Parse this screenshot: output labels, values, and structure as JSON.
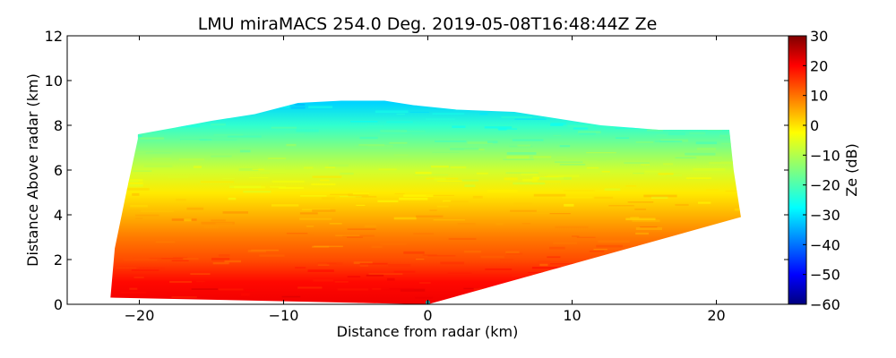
{
  "chart_data": {
    "type": "heatmap",
    "title": "LMU miraMACS 254.0 Deg. 2019-05-08T16:48:44Z  Ze",
    "xlabel": "Distance from radar (km)",
    "ylabel": "Distance Above radar  (km)",
    "xlim": [
      -25,
      25
    ],
    "ylim": [
      0,
      12
    ],
    "xticks": [
      -20,
      -10,
      0,
      10,
      20
    ],
    "xtick_labels": [
      "−20",
      "−10",
      "0",
      "10",
      "20"
    ],
    "yticks": [
      0,
      2,
      4,
      6,
      8,
      10,
      12
    ],
    "ytick_labels": [
      "0",
      "2",
      "4",
      "6",
      "8",
      "10",
      "12"
    ],
    "colorbar": {
      "label": "Ze (dB)",
      "range": [
        -60,
        30
      ],
      "ticks": [
        -60,
        -50,
        -40,
        -30,
        -20,
        -10,
        0,
        10,
        20,
        30
      ],
      "tick_labels": [
        "−60",
        "−50",
        "−40",
        "−30",
        "−20",
        "−10",
        "0",
        "10",
        "20",
        "30"
      ],
      "colormap": "jet"
    },
    "echo_region": {
      "left_edge_km": [
        [
          -22,
          0.3
        ],
        [
          -21.7,
          2.5
        ],
        [
          -20.9,
          5.0
        ],
        [
          -20.1,
          7.4
        ]
      ],
      "right_edge_km": [
        [
          0,
          0
        ],
        [
          21.7,
          3.9
        ],
        [
          21.2,
          6.0
        ],
        [
          20.9,
          7.8
        ]
      ],
      "top_profile_km": [
        [
          -20.1,
          7.6
        ],
        [
          -17.5,
          7.9
        ],
        [
          -15,
          8.2
        ],
        [
          -12,
          8.5
        ],
        [
          -9,
          9.0
        ],
        [
          -6,
          9.1
        ],
        [
          -3,
          9.1
        ],
        [
          -1,
          8.9
        ],
        [
          2,
          8.7
        ],
        [
          6,
          8.6
        ],
        [
          9,
          8.3
        ],
        [
          12,
          8.0
        ],
        [
          16,
          7.8
        ],
        [
          20.9,
          7.8
        ]
      ],
      "ze_layers_dB": [
        {
          "height_km": 0.0,
          "ze": 20
        },
        {
          "height_km": 1.0,
          "ze": 18
        },
        {
          "height_km": 2.0,
          "ze": 12
        },
        {
          "height_km": 3.0,
          "ze": 8
        },
        {
          "height_km": 4.0,
          "ze": 3
        },
        {
          "height_km": 5.0,
          "ze": -2
        },
        {
          "height_km": 6.0,
          "ze": -8
        },
        {
          "height_km": 7.0,
          "ze": -15
        },
        {
          "height_km": 8.0,
          "ze": -22
        },
        {
          "height_km": 9.0,
          "ze": -30
        }
      ]
    },
    "radar_position_km": [
      0,
      0
    ]
  }
}
